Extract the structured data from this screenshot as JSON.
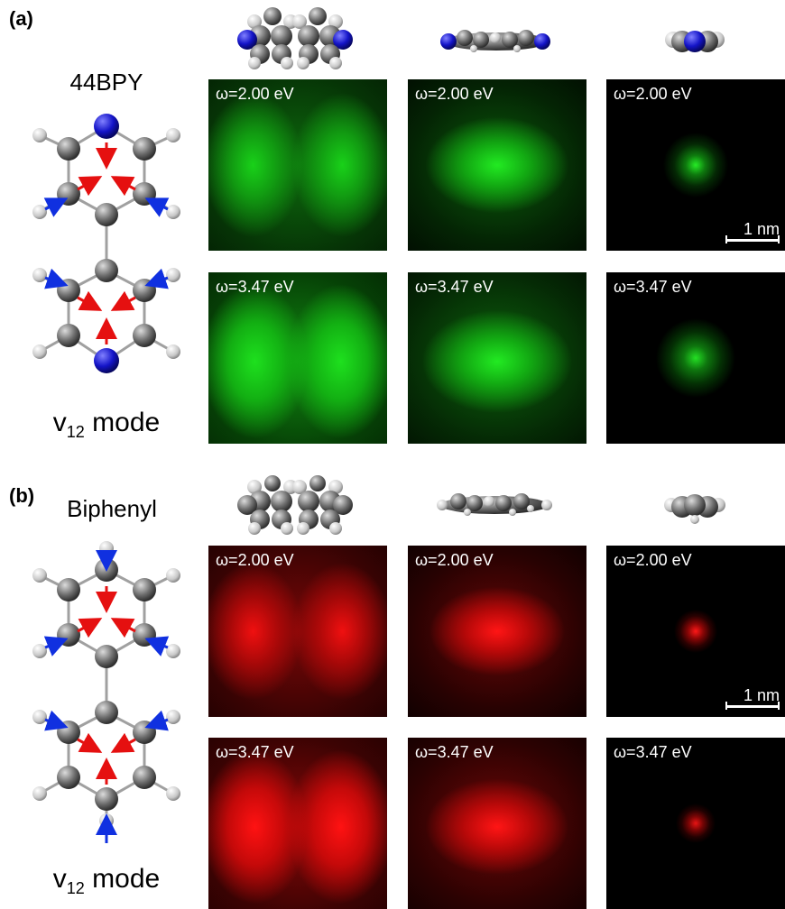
{
  "panels": [
    {
      "label": "(a)",
      "molecule": "44BPY",
      "mode_main": "v",
      "mode_sub": "12",
      "mode_suffix": " mode",
      "color": "green",
      "heteroatom_color": "#1a1ad0",
      "maps": [
        {
          "freq": "ω=2.00 eV",
          "views": [
            "top",
            "side",
            "end"
          ]
        },
        {
          "freq": "ω=3.47 eV",
          "views": [
            "top",
            "side",
            "end"
          ]
        }
      ],
      "scale_bar": "1 nm"
    },
    {
      "label": "(b)",
      "molecule": "Biphenyl",
      "mode_main": "v",
      "mode_sub": "12",
      "mode_suffix": " mode",
      "color": "red",
      "heteroatom_color": "#808080",
      "maps": [
        {
          "freq": "ω=2.00 eV",
          "views": [
            "top",
            "side",
            "end"
          ]
        },
        {
          "freq": "ω=3.47 eV",
          "views": [
            "top",
            "side",
            "end"
          ]
        }
      ],
      "scale_bar": "1 nm"
    }
  ],
  "arrow_colors": {
    "ring": "#e51010",
    "hydrogen": "#1030e0"
  }
}
